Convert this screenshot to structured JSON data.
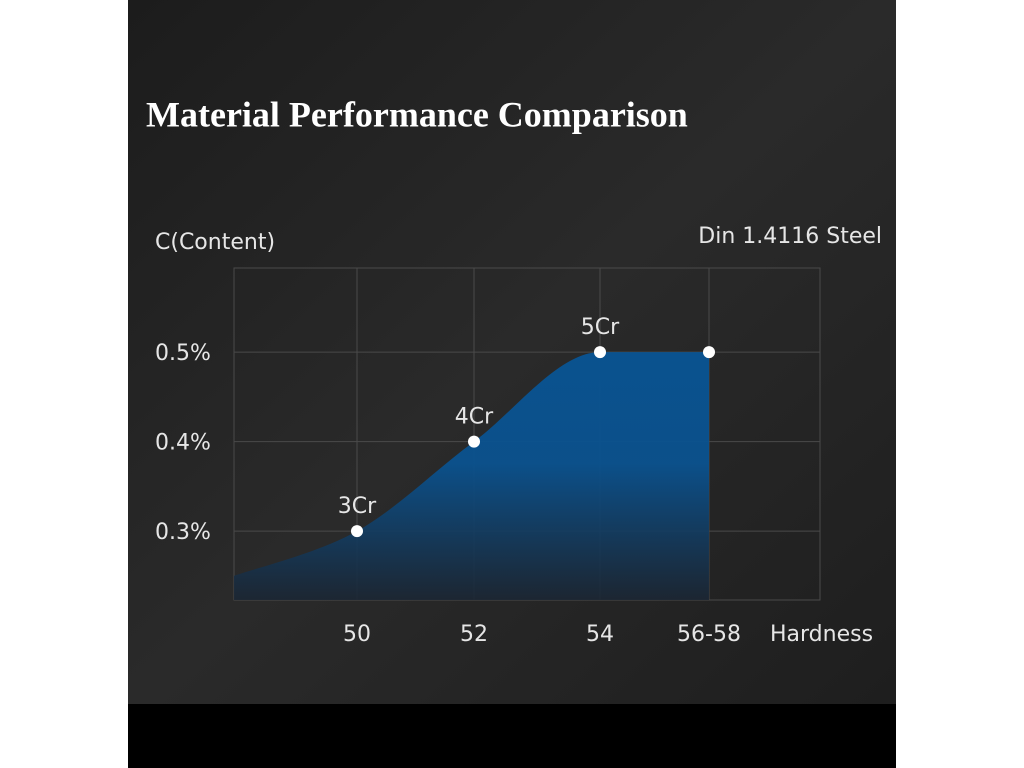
{
  "chart_data": {
    "type": "area",
    "title": "Material Performance Comparison",
    "subtitle": "Din 1.4116 Steel",
    "y_label": "C(Content)",
    "x_label": "Hardness",
    "categories": [
      null,
      "50",
      "52",
      "54",
      "56-58"
    ],
    "values": [
      0.25,
      0.3,
      0.4,
      0.5,
      0.5
    ],
    "point_labels": [
      null,
      "3Cr",
      "4Cr",
      "5Cr",
      null
    ],
    "color": "#0a528f",
    "ylim": [
      0.223,
      0.594
    ],
    "yticks": [
      {
        "value": 0.3,
        "label": "0.3%"
      },
      {
        "value": 0.4,
        "label": "0.4%"
      },
      {
        "value": 0.5,
        "label": "0.5%"
      }
    ],
    "grid": true
  }
}
